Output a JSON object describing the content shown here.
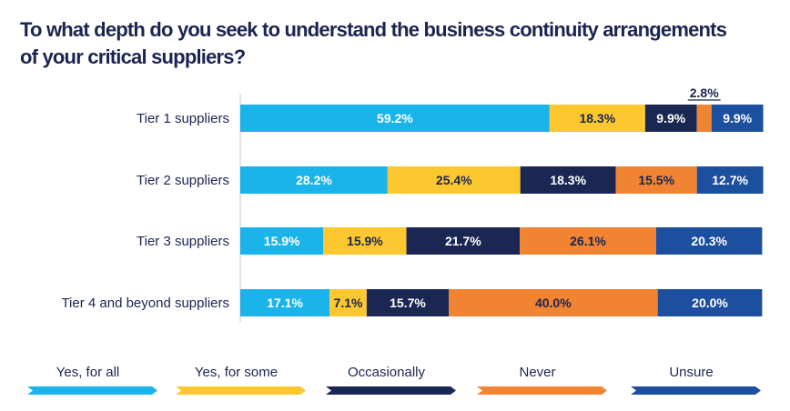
{
  "title_lines": [
    "To what depth do you seek to understand the business continuity arrangements",
    "of your critical suppliers?"
  ],
  "chart_data": {
    "type": "bar",
    "orientation": "horizontal",
    "stacked": true,
    "title": "To what depth do you seek to understand the business continuity arrangements of your critical suppliers?",
    "categories": [
      "Tier 1 suppliers",
      "Tier 2 suppliers",
      "Tier 3 suppliers",
      "Tier 4 and beyond suppliers"
    ],
    "series": [
      {
        "name": "Yes, for all",
        "color": "#1ab3ea",
        "label_color": "#ffffff",
        "values": [
          59.2,
          28.2,
          15.9,
          17.1
        ]
      },
      {
        "name": "Yes, for some",
        "color": "#fdc82f",
        "label_color": "#1b2551",
        "values": [
          18.3,
          25.4,
          15.9,
          7.1
        ]
      },
      {
        "name": "Occasionally",
        "color": "#1a2752",
        "label_color": "#ffffff",
        "values": [
          9.9,
          18.3,
          21.7,
          15.7
        ]
      },
      {
        "name": "Never",
        "color": "#f08433",
        "label_color": "#1b2551",
        "values": [
          2.8,
          15.5,
          26.1,
          40.0
        ]
      },
      {
        "name": "Unsure",
        "color": "#1d4f9f",
        "label_color": "#ffffff",
        "values": [
          9.9,
          12.7,
          20.3,
          20.0
        ]
      }
    ],
    "value_labels": [
      [
        "59.2%",
        "18.3%",
        "9.9%",
        "2.8%",
        "9.9%"
      ],
      [
        "28.2%",
        "25.4%",
        "18.3%",
        "15.5%",
        "12.7%"
      ],
      [
        "15.9%",
        "15.9%",
        "21.7%",
        "26.1%",
        "20.3%"
      ],
      [
        "17.1%",
        "7.1%",
        "15.7%",
        "40.0%",
        "20.0%"
      ]
    ],
    "callout_labels": [
      {
        "category_index": 0,
        "series_index": 3
      }
    ],
    "xlim": [
      0,
      100
    ],
    "legend_position": "bottom",
    "grid": false
  }
}
